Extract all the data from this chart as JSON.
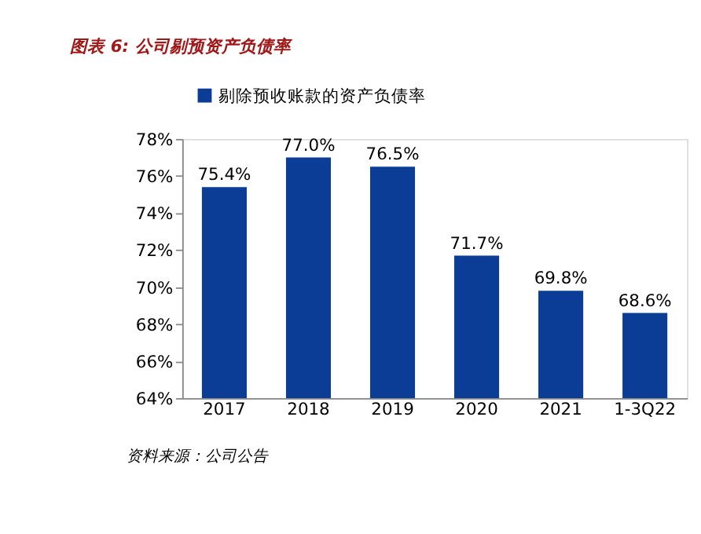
{
  "chart_data": {
    "type": "bar",
    "title": "图表 6: 公司剔预资产负债率",
    "annotations": [
      "资料来源：公司公告"
    ],
    "categories": [
      "2017",
      "2018",
      "2019",
      "2020",
      "2021",
      "1-3Q22"
    ],
    "series": [
      {
        "name": "剔除预收账款的资产负债率",
        "color": "#0b3c96",
        "values": [
          75.4,
          77.0,
          76.5,
          71.7,
          69.8,
          68.6
        ],
        "value_labels": [
          "75.4%",
          "77.0%",
          "76.5%",
          "71.7%",
          "69.8%",
          "68.6%"
        ]
      }
    ],
    "ylim": [
      64,
      78
    ],
    "yticks": [
      {
        "value": 64,
        "label": "64%"
      },
      {
        "value": 66,
        "label": "66%"
      },
      {
        "value": 68,
        "label": "68%"
      },
      {
        "value": 70,
        "label": "70%"
      },
      {
        "value": 72,
        "label": "72%"
      },
      {
        "value": 74,
        "label": "74%"
      },
      {
        "value": 76,
        "label": "76%"
      },
      {
        "value": 78,
        "label": "78%"
      }
    ],
    "grid": false,
    "legend": "top"
  }
}
